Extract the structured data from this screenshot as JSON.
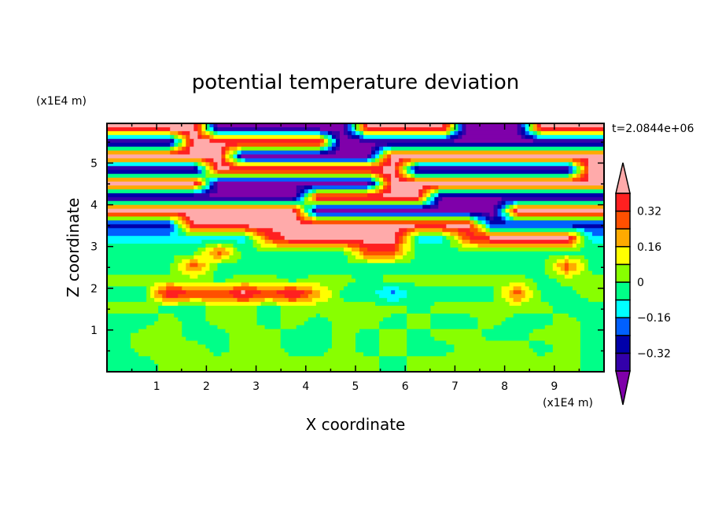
{
  "chart_data": {
    "type": "heatmap",
    "title": "potential temperature deviation",
    "xlabel": "X coordinate",
    "ylabel": "Z coordinate",
    "x_unit": "(x1E4 m)",
    "y_unit": "(x1E4 m)",
    "annotation": "t=2.0844e+06",
    "xlim": [
      0,
      10
    ],
    "ylim": [
      0,
      6
    ],
    "x_ticks": [
      "1",
      "2",
      "3",
      "4",
      "5",
      "6",
      "7",
      "8",
      "9"
    ],
    "y_ticks": [
      "1",
      "2",
      "3",
      "4",
      "5"
    ],
    "x_tick_values": [
      1,
      2,
      3,
      4,
      5,
      6,
      7,
      8,
      9
    ],
    "y_tick_values": [
      1,
      2,
      3,
      4,
      5
    ],
    "colorbar": {
      "levels": [
        -0.4,
        -0.32,
        -0.24,
        -0.16,
        -0.08,
        0,
        0.08,
        0.16,
        0.24,
        0.32,
        0.4
      ],
      "labels": [
        "0.32",
        "0.16",
        "0",
        "-0.16",
        "-0.32"
      ],
      "label_values": [
        0.32,
        0.16,
        0,
        -0.16,
        -0.32
      ],
      "colors_low_to_high": [
        "#7f00aa",
        "#3300aa",
        "#0000aa",
        "#0060ff",
        "#00ffff",
        "#00ff88",
        "#88ff00",
        "#ffff00",
        "#ffaa00",
        "#ff5000",
        "#ff2020",
        "#ffaaaa"
      ]
    },
    "grid_x": [
      0.25,
      0.75,
      1.25,
      1.75,
      2.25,
      2.75,
      3.25,
      3.75,
      4.25,
      4.75,
      5.25,
      5.75,
      6.25,
      6.75,
      7.25,
      7.75,
      8.25,
      8.75,
      9.25,
      9.75
    ],
    "grid_z_top_to_bottom": [
      5.83,
      5.5,
      5.17,
      4.83,
      4.5,
      4.17,
      3.83,
      3.5,
      3.17,
      2.83,
      2.5,
      2.17,
      1.83,
      1.5,
      1.17,
      0.83,
      0.5,
      0.17
    ],
    "values": [
      [
        0.45,
        0.45,
        0.45,
        0.45,
        -0.45,
        -0.45,
        -0.45,
        -0.45,
        -0.45,
        -0.45,
        0.45,
        0.45,
        0.45,
        0.45,
        -0.45,
        -0.45,
        -0.45,
        0.45,
        0.45,
        0.45
      ],
      [
        -0.45,
        -0.45,
        -0.45,
        0.45,
        0.45,
        0.45,
        0.45,
        0.45,
        0.45,
        -0.45,
        -0.45,
        -0.45,
        -0.45,
        -0.45,
        -0.45,
        -0.45,
        -0.45,
        -0.45,
        -0.45,
        -0.45
      ],
      [
        0.45,
        0.45,
        0.45,
        0.45,
        0.45,
        -0.45,
        -0.45,
        -0.45,
        -0.45,
        -0.45,
        -0.45,
        0.45,
        0.45,
        0.45,
        0.45,
        0.45,
        0.45,
        0.45,
        0.45,
        0.45
      ],
      [
        -0.45,
        -0.45,
        -0.45,
        -0.45,
        0.45,
        0.45,
        0.45,
        0.45,
        0.45,
        0.45,
        0.45,
        0.45,
        -0.45,
        -0.45,
        -0.45,
        -0.45,
        -0.45,
        -0.45,
        -0.45,
        0.45
      ],
      [
        0.45,
        0.45,
        0.45,
        0.45,
        -0.45,
        -0.45,
        -0.45,
        -0.45,
        -0.45,
        -0.45,
        -0.45,
        0.45,
        0.45,
        0.45,
        0.45,
        0.45,
        0.45,
        0.45,
        0.45,
        0.45
      ],
      [
        -0.45,
        -0.45,
        -0.45,
        -0.45,
        -0.45,
        -0.45,
        -0.45,
        -0.45,
        0.45,
        0.45,
        0.45,
        0.45,
        0.45,
        -0.45,
        -0.45,
        -0.45,
        -0.45,
        -0.45,
        -0.45,
        -0.45
      ],
      [
        0.45,
        0.45,
        0.45,
        0.45,
        0.45,
        0.45,
        0.45,
        0.45,
        -0.45,
        -0.45,
        -0.45,
        -0.45,
        -0.45,
        -0.45,
        -0.45,
        -0.45,
        0.45,
        0.45,
        0.45,
        0.45
      ],
      [
        -0.3,
        -0.3,
        -0.3,
        0.45,
        0.45,
        0.45,
        0.45,
        0.45,
        0.45,
        0.45,
        0.45,
        0.45,
        0.45,
        0.45,
        0.45,
        -0.3,
        -0.3,
        -0.3,
        -0.3,
        -0.3
      ],
      [
        -0.12,
        -0.12,
        -0.12,
        -0.12,
        -0.12,
        -0.12,
        0.3,
        0.45,
        0.45,
        0.45,
        0.45,
        0.45,
        -0.12,
        -0.12,
        0.3,
        0.45,
        0.45,
        0.45,
        0.45,
        -0.12
      ],
      [
        -0.03,
        -0.03,
        -0.03,
        -0.03,
        0.3,
        -0.03,
        -0.03,
        -0.03,
        -0.03,
        -0.03,
        0.3,
        0.3,
        -0.03,
        -0.03,
        -0.03,
        -0.03,
        -0.03,
        -0.03,
        -0.03,
        -0.03
      ],
      [
        -0.03,
        -0.03,
        -0.03,
        0.3,
        -0.03,
        -0.03,
        -0.03,
        -0.03,
        -0.03,
        -0.03,
        -0.03,
        -0.03,
        -0.03,
        -0.03,
        -0.03,
        -0.03,
        -0.03,
        -0.03,
        0.3,
        -0.03
      ],
      [
        0.03,
        0.03,
        0.03,
        0.03,
        -0.03,
        0.03,
        0.03,
        -0.03,
        0.03,
        0.03,
        -0.03,
        0.03,
        0.03,
        0.03,
        0.03,
        0.03,
        0.03,
        -0.03,
        0.03,
        0.03
      ],
      [
        -0.03,
        -0.03,
        0.45,
        0.3,
        0.3,
        0.45,
        0.3,
        0.45,
        0.2,
        -0.03,
        -0.03,
        -0.2,
        -0.03,
        -0.03,
        -0.03,
        -0.03,
        0.3,
        -0.03,
        -0.03,
        0.03
      ],
      [
        0.03,
        0.03,
        -0.03,
        -0.03,
        0.03,
        0.03,
        -0.03,
        0.03,
        0.03,
        0.03,
        0.03,
        0.03,
        -0.03,
        0.03,
        0.03,
        0.03,
        0.03,
        0.03,
        -0.03,
        -0.03
      ],
      [
        -0.03,
        -0.03,
        0.03,
        -0.03,
        0.03,
        0.03,
        -0.03,
        0.03,
        -0.03,
        0.03,
        0.03,
        -0.03,
        0.03,
        -0.03,
        -0.03,
        0.03,
        -0.03,
        -0.03,
        0.03,
        -0.03
      ],
      [
        -0.03,
        0.03,
        0.03,
        -0.03,
        -0.03,
        0.03,
        0.03,
        -0.03,
        -0.03,
        0.03,
        -0.03,
        0.03,
        -0.03,
        0.03,
        0.03,
        -0.03,
        -0.03,
        0.03,
        0.03,
        -0.03
      ],
      [
        -0.03,
        0.03,
        0.03,
        0.03,
        -0.03,
        0.03,
        0.03,
        -0.03,
        -0.03,
        0.03,
        -0.03,
        0.03,
        -0.03,
        -0.03,
        0.03,
        0.03,
        0.03,
        -0.03,
        0.03,
        -0.03
      ],
      [
        -0.03,
        -0.03,
        0.03,
        0.03,
        0.03,
        0.03,
        0.03,
        0.03,
        0.03,
        0.03,
        0.03,
        -0.03,
        0.03,
        0.03,
        0.03,
        0.03,
        0.03,
        0.03,
        0.03,
        -0.03
      ]
    ]
  }
}
